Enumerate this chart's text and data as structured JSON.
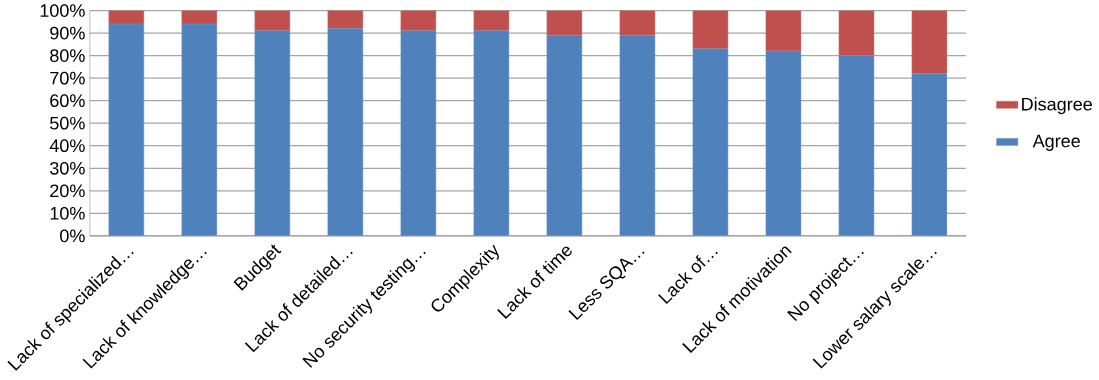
{
  "chart_data": {
    "type": "bar",
    "stacked": true,
    "categories": [
      "Lack of specialized…",
      "Lack of knowledge…",
      "Budget",
      "Lack of detailed…",
      "No security testing…",
      "Complexity",
      "Lack of time",
      "Less SQA…",
      "Lack of…",
      "Lack of motivation",
      "No project…",
      "Lower salary scale…"
    ],
    "series": [
      {
        "name": "Agree",
        "color": "#4f81bd",
        "values": [
          94,
          94,
          91,
          92,
          91,
          91,
          89,
          89,
          83,
          82,
          80,
          72
        ]
      },
      {
        "name": "Disagree",
        "color": "#c0504d",
        "values": [
          6,
          6,
          9,
          8,
          9,
          9,
          11,
          11,
          17,
          18,
          20,
          28
        ]
      }
    ],
    "ylim": [
      0,
      100
    ],
    "yticks": [
      {
        "value": 0,
        "label": "0%"
      },
      {
        "value": 10,
        "label": "10%"
      },
      {
        "value": 20,
        "label": "20%"
      },
      {
        "value": 30,
        "label": "30%"
      },
      {
        "value": 40,
        "label": "40%"
      },
      {
        "value": 50,
        "label": "50%"
      },
      {
        "value": 60,
        "label": "60%"
      },
      {
        "value": 70,
        "label": "70%"
      },
      {
        "value": 80,
        "label": "80%"
      },
      {
        "value": 90,
        "label": "90%"
      },
      {
        "value": 100,
        "label": "100%"
      }
    ],
    "grid": "y",
    "legend": "right"
  }
}
